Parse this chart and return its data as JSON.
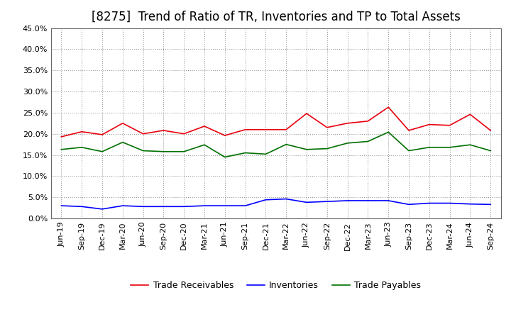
{
  "title": "[8275]  Trend of Ratio of TR, Inventories and TP to Total Assets",
  "x_labels": [
    "Jun-19",
    "Sep-19",
    "Dec-19",
    "Mar-20",
    "Jun-20",
    "Sep-20",
    "Dec-20",
    "Mar-21",
    "Jun-21",
    "Sep-21",
    "Dec-21",
    "Mar-22",
    "Jun-22",
    "Sep-22",
    "Dec-22",
    "Mar-23",
    "Jun-23",
    "Sep-23",
    "Dec-23",
    "Mar-24",
    "Jun-24",
    "Sep-24"
  ],
  "trade_receivables": [
    0.193,
    0.205,
    0.198,
    0.225,
    0.2,
    0.208,
    0.2,
    0.218,
    0.196,
    0.21,
    0.21,
    0.21,
    0.248,
    0.215,
    0.225,
    0.23,
    0.263,
    0.208,
    0.222,
    0.22,
    0.246,
    0.208
  ],
  "inventories": [
    0.03,
    0.028,
    0.022,
    0.03,
    0.028,
    0.028,
    0.028,
    0.03,
    0.03,
    0.03,
    0.044,
    0.046,
    0.038,
    0.04,
    0.042,
    0.042,
    0.042,
    0.033,
    0.036,
    0.036,
    0.034,
    0.033
  ],
  "trade_payables": [
    0.163,
    0.168,
    0.158,
    0.18,
    0.16,
    0.158,
    0.158,
    0.174,
    0.145,
    0.155,
    0.152,
    0.175,
    0.163,
    0.165,
    0.178,
    0.182,
    0.204,
    0.16,
    0.168,
    0.168,
    0.174,
    0.16
  ],
  "tr_color": "#e8000d",
  "inv_color": "#0000ff",
  "tp_color": "#007000",
  "ylim": [
    0.0,
    0.45
  ],
  "yticks": [
    0.0,
    0.05,
    0.1,
    0.15,
    0.2,
    0.25,
    0.3,
    0.35,
    0.4,
    0.45
  ],
  "bg_color": "#ffffff",
  "plot_bg_color": "#ffffff",
  "grid_color": "#888888",
  "legend_labels": [
    "Trade Receivables",
    "Inventories",
    "Trade Payables"
  ],
  "title_fontsize": 12,
  "tick_fontsize": 8,
  "legend_fontsize": 9
}
